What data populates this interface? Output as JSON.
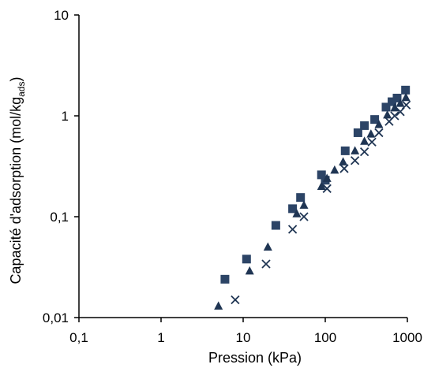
{
  "chart_data": {
    "type": "scatter",
    "xscale": "log",
    "yscale": "log",
    "xlim": [
      0.1,
      1000
    ],
    "ylim": [
      0.01,
      10
    ],
    "xticks": [
      "0,1",
      "1",
      "10",
      "100",
      "1000"
    ],
    "yticks": [
      "0,01",
      "0,1",
      "1",
      "10"
    ],
    "xlabel": "Pression (kPa)",
    "ylabel": {
      "main": "Capacité d'adsorption (mol/kg",
      "sub": "ads",
      "close": ")"
    },
    "grid": false,
    "legend": "none",
    "series": [
      {
        "marker": "square",
        "color": "#2c4466",
        "points": [
          [
            6,
            0.024
          ],
          [
            11,
            0.038
          ],
          [
            25,
            0.082
          ],
          [
            40,
            0.12
          ],
          [
            50,
            0.155
          ],
          [
            90,
            0.26
          ],
          [
            100,
            0.23
          ],
          [
            175,
            0.45
          ],
          [
            250,
            0.68
          ],
          [
            300,
            0.8
          ],
          [
            400,
            0.92
          ],
          [
            550,
            1.22
          ],
          [
            650,
            1.38
          ],
          [
            750,
            1.5
          ],
          [
            950,
            1.8
          ]
        ]
      },
      {
        "marker": "triangle",
        "color": "#1f3553",
        "points": [
          [
            5,
            0.013
          ],
          [
            12,
            0.029
          ],
          [
            20,
            0.05
          ],
          [
            45,
            0.107
          ],
          [
            55,
            0.13
          ],
          [
            90,
            0.2
          ],
          [
            105,
            0.24
          ],
          [
            130,
            0.29
          ],
          [
            165,
            0.35
          ],
          [
            230,
            0.45
          ],
          [
            300,
            0.56
          ],
          [
            360,
            0.66
          ],
          [
            450,
            0.82
          ],
          [
            570,
            1.02
          ],
          [
            700,
            1.2
          ],
          [
            820,
            1.33
          ],
          [
            960,
            1.52
          ]
        ]
      },
      {
        "marker": "x",
        "color": "#1f3553",
        "points": [
          [
            8,
            0.015
          ],
          [
            19,
            0.034
          ],
          [
            40,
            0.075
          ],
          [
            55,
            0.1
          ],
          [
            105,
            0.19
          ],
          [
            170,
            0.3
          ],
          [
            230,
            0.36
          ],
          [
            300,
            0.44
          ],
          [
            370,
            0.55
          ],
          [
            450,
            0.68
          ],
          [
            600,
            0.88
          ],
          [
            700,
            1.0
          ],
          [
            820,
            1.1
          ],
          [
            970,
            1.28
          ]
        ]
      }
    ]
  }
}
